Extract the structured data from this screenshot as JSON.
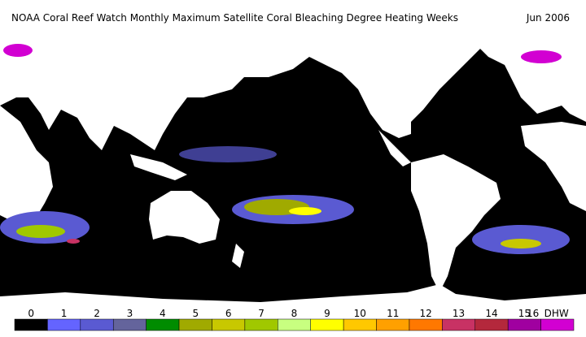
{
  "header": {
    "title": "NOAA Coral Reef Watch Monthly Maximum Satellite Coral Bleaching Degree Heating Weeks",
    "date": "Jun 2006"
  },
  "legend": {
    "unit": "DHW",
    "items": [
      {
        "value": 0,
        "color": "#000000"
      },
      {
        "value": 1,
        "color": "#6464ff"
      },
      {
        "value": 2,
        "color": "#5a5ad2"
      },
      {
        "value": 3,
        "color": "#64649c"
      },
      {
        "value": 4,
        "color": "#008c00"
      },
      {
        "value": 5,
        "color": "#a0aa00"
      },
      {
        "value": 6,
        "color": "#c8c800"
      },
      {
        "value": 7,
        "color": "#a0c800"
      },
      {
        "value": 8,
        "color": "#c8ff80"
      },
      {
        "value": 9,
        "color": "#ffff00"
      },
      {
        "value": 10,
        "color": "#ffc800"
      },
      {
        "value": 11,
        "color": "#ffa000"
      },
      {
        "value": 12,
        "color": "#ff7800"
      },
      {
        "value": 13,
        "color": "#c83264"
      },
      {
        "value": 14,
        "color": "#b4283c"
      },
      {
        "value": 15,
        "color": "#a000a0"
      },
      {
        "value": 16,
        "color": "#d200d2"
      }
    ]
  }
}
